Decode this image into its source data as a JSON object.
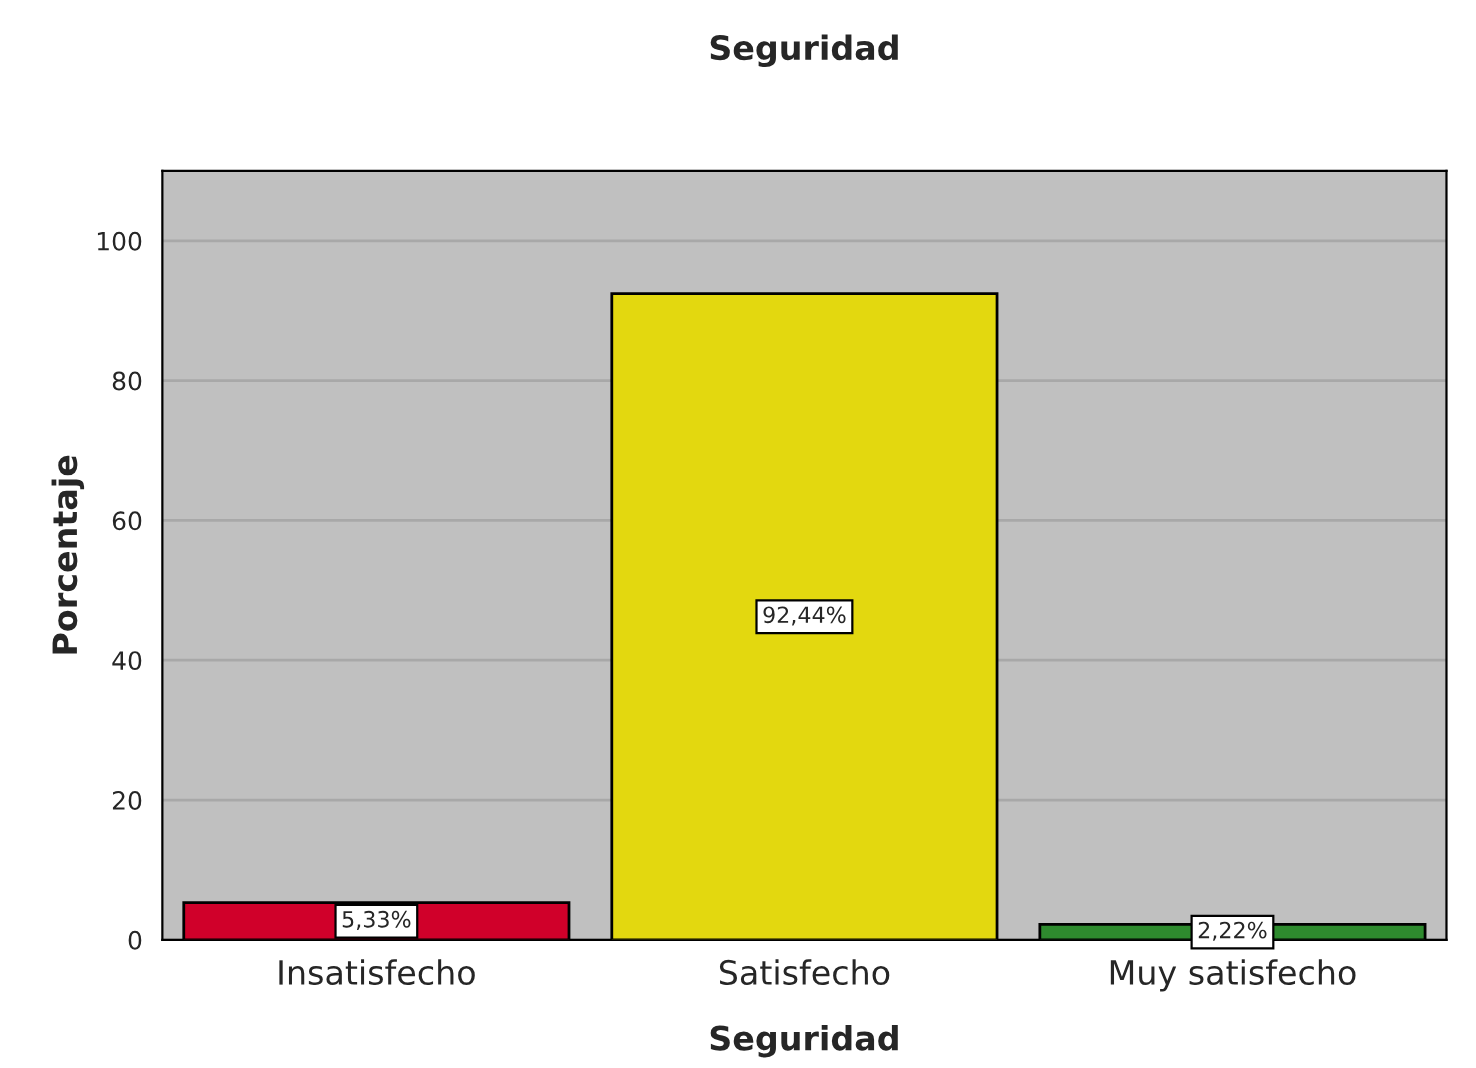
{
  "chart_data": {
    "type": "bar",
    "title": "Seguridad",
    "xlabel": "Seguridad",
    "ylabel": "Porcentaje",
    "categories": [
      "Insatisfecho",
      "Satisfecho",
      "Muy satisfecho"
    ],
    "values": [
      5.33,
      92.44,
      2.22
    ],
    "colors": [
      "#d0002a",
      "#e3d80f",
      "#2e8b2e"
    ],
    "value_labels": [
      "5,33%",
      "92,44%",
      "2,22%"
    ],
    "ylim": [
      0,
      110
    ],
    "yticks": [
      0,
      20,
      40,
      60,
      80,
      100
    ],
    "grid": "y"
  }
}
